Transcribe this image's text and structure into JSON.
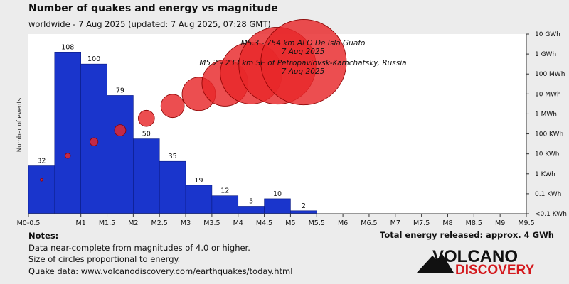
{
  "header": {
    "title": "Number of quakes and energy vs magnitude",
    "subtitle": "worldwide -  7 Aug 2025 (updated: 7 Aug 2025, 07:28 GMT)"
  },
  "notes": {
    "heading": "Notes:",
    "lines": [
      "Data near-complete from magnitudes of 4.0 or higher.",
      "Size of circles proportional to energy.",
      "Quake data: www.volcanodiscovery.com/earthquakes/today.html"
    ]
  },
  "total_energy": "Total energy released: approx. 4 GWh",
  "logo": {
    "line1": "VOLCANO",
    "line2": "DISCOVERY"
  },
  "colors": {
    "bar": "#1a35cc",
    "bar_edge": "#0a1a80",
    "circle": "#e8272a",
    "circle_edge": "#8a0000",
    "background": "#ececec",
    "plot_bg": "#ffffff"
  },
  "chart_data": {
    "type": "bar",
    "title": "Number of quakes and energy vs magnitude",
    "ylabel": "Number of events",
    "x_tick_labels": [
      "M0-0.5",
      "M1",
      "M1.5",
      "M2",
      "M2.5",
      "M3",
      "M3.5",
      "M4",
      "M4.5",
      "M5",
      "M5.5",
      "M6",
      "M6.5",
      "M7",
      "M7.5",
      "M8",
      "M8.5",
      "M9",
      "M9.5"
    ],
    "y2_tick_labels": [
      "10 GWh",
      "1 GWh",
      "100 MWh",
      "10 MWh",
      "1 MWh",
      "100 KWh",
      "10 KWh",
      "1 KWh",
      "0.1 KWh",
      "<0.1 KWh"
    ],
    "bins": [
      {
        "from": 0.0,
        "to": 0.5,
        "count": 32
      },
      {
        "from": 0.5,
        "to": 1.0,
        "count": 108
      },
      {
        "from": 1.0,
        "to": 1.5,
        "count": 100
      },
      {
        "from": 1.5,
        "to": 2.0,
        "count": 79
      },
      {
        "from": 2.0,
        "to": 2.5,
        "count": 50
      },
      {
        "from": 2.5,
        "to": 3.0,
        "count": 35
      },
      {
        "from": 3.0,
        "to": 3.5,
        "count": 19
      },
      {
        "from": 3.5,
        "to": 4.0,
        "count": 12
      },
      {
        "from": 4.0,
        "to": 4.5,
        "count": 5
      },
      {
        "from": 4.5,
        "to": 5.0,
        "count": 10
      },
      {
        "from": 5.0,
        "to": 5.5,
        "count": 2
      }
    ],
    "energy_kwh": [
      0.5,
      8,
      40,
      150,
      600,
      2500,
      10000,
      35000,
      110000,
      260000,
      390000
    ],
    "xlim": [
      0,
      9.5
    ],
    "ylim": [
      0,
      120
    ],
    "y2_log_kwh_range": [
      0.01,
      10000000
    ],
    "annotations": [
      {
        "text1": "M5.3 - 754 km Al O De Isla Guafo",
        "text2": "7 Aug 2025"
      },
      {
        "text1": "M5.2 - 233 km SE of Petropavlovsk-Kamchatsky, Russia",
        "text2": "7 Aug 2025"
      }
    ],
    "grid": false,
    "legend": "none"
  }
}
